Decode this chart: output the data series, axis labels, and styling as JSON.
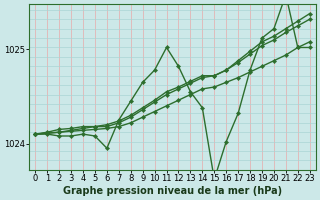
{
  "xlabel": "Graphe pression niveau de la mer (hPa)",
  "background_color": "#cce8e8",
  "grid_color_v": "#e8aaaa",
  "grid_color_h": "#aad4d4",
  "line_color": "#2d6e2d",
  "xlim": [
    -0.5,
    23.5
  ],
  "ylim": [
    1023.72,
    1025.48
  ],
  "yticks": [
    1024,
    1025
  ],
  "xticks": [
    0,
    1,
    2,
    3,
    4,
    5,
    6,
    7,
    8,
    9,
    10,
    11,
    12,
    13,
    14,
    15,
    16,
    17,
    18,
    19,
    20,
    21,
    22,
    23
  ],
  "series": [
    [
      1024.1,
      1024.1,
      1024.08,
      1024.08,
      1024.1,
      1024.08,
      1023.95,
      1024.25,
      1024.45,
      1024.65,
      1024.78,
      1025.02,
      1024.82,
      1024.55,
      1024.38,
      1023.62,
      1024.02,
      1024.32,
      1024.78,
      1025.12,
      1025.22,
      1025.58,
      1025.02,
      1025.02
    ],
    [
      1024.1,
      1024.11,
      1024.12,
      1024.13,
      1024.14,
      1024.15,
      1024.16,
      1024.18,
      1024.22,
      1024.28,
      1024.34,
      1024.4,
      1024.46,
      1024.52,
      1024.58,
      1024.6,
      1024.65,
      1024.7,
      1024.76,
      1024.82,
      1024.88,
      1024.94,
      1025.02,
      1025.08
    ],
    [
      1024.1,
      1024.11,
      1024.12,
      1024.14,
      1024.16,
      1024.18,
      1024.2,
      1024.24,
      1024.3,
      1024.38,
      1024.46,
      1024.55,
      1024.6,
      1024.66,
      1024.72,
      1024.72,
      1024.78,
      1024.88,
      1024.98,
      1025.08,
      1025.14,
      1025.22,
      1025.3,
      1025.38
    ],
    [
      1024.1,
      1024.12,
      1024.15,
      1024.16,
      1024.18,
      1024.18,
      1024.18,
      1024.22,
      1024.28,
      1024.36,
      1024.44,
      1024.52,
      1024.58,
      1024.64,
      1024.7,
      1024.72,
      1024.78,
      1024.86,
      1024.95,
      1025.04,
      1025.1,
      1025.18,
      1025.25,
      1025.32
    ]
  ],
  "marker": "D",
  "marker_size": 2.2,
  "linewidth": 1.0,
  "tick_fontsize": 6.0,
  "label_fontsize": 7.0
}
